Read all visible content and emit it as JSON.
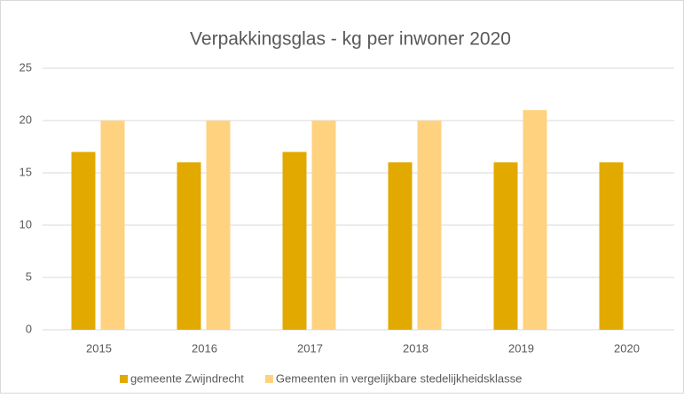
{
  "chart_data": {
    "type": "bar",
    "title": "Verpakkingsglas - kg per inwoner 2020",
    "categories": [
      "2015",
      "2016",
      "2017",
      "2018",
      "2019",
      "2020"
    ],
    "series": [
      {
        "name": "gemeente Zwijndrecht",
        "color": "#e2a900",
        "values": [
          17,
          16,
          17,
          16,
          16,
          16
        ]
      },
      {
        "name": "Gemeenten in vergelijkbare stedelijkheidsklasse",
        "color": "#ffd27f",
        "values": [
          20,
          20,
          20,
          20,
          21,
          null
        ]
      }
    ],
    "ylim": [
      0,
      25
    ],
    "yticks": [
      0,
      5,
      10,
      15,
      20,
      25
    ],
    "grid": true,
    "legend": "bottom"
  }
}
